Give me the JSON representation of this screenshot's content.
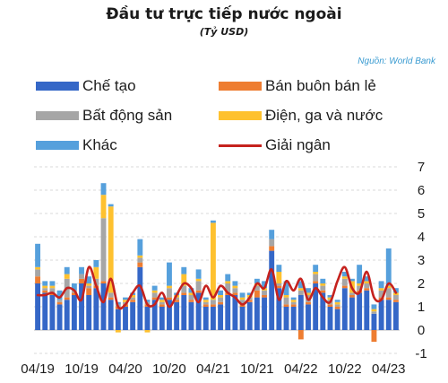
{
  "header": {
    "title": "Đầu tư trực tiếp nước ngoài",
    "subtitle": "(Tỷ USD)",
    "source": "Nguồn: World Bank"
  },
  "colors": {
    "manufacturing": "#3567c7",
    "wholesale": "#ee7d31",
    "real_estate": "#a6a6a6",
    "utilities": "#fec12f",
    "other": "#56a0dc",
    "disbursement": "#c5221e"
  },
  "legend": [
    {
      "key": "manufacturing",
      "label": "Chế tạo"
    },
    {
      "key": "wholesale",
      "label": "Bán buôn bán lẻ"
    },
    {
      "key": "real_estate",
      "label": "Bất động sản"
    },
    {
      "key": "utilities",
      "label": "Điện, ga và nước"
    },
    {
      "key": "other",
      "label": "Khác"
    },
    {
      "key": "disbursement",
      "label": "Giải ngân"
    }
  ],
  "chart_data": {
    "type": "bar",
    "stacked": true,
    "ylim": [
      -1,
      7
    ],
    "yticks": [
      -1,
      0,
      1,
      2,
      3,
      4,
      5,
      6,
      7
    ],
    "grid": true,
    "x_tick_labels": [
      "04/19",
      "10/19",
      "04/20",
      "10/20",
      "04/21",
      "10/21",
      "04/22",
      "10/22",
      "04/23"
    ],
    "x_tick_positions": [
      0,
      6,
      12,
      18,
      24,
      30,
      36,
      42,
      48
    ],
    "months": [
      "04/19",
      "05/19",
      "06/19",
      "07/19",
      "08/19",
      "09/19",
      "10/19",
      "11/19",
      "12/19",
      "01/20",
      "02/20",
      "03/20",
      "04/20",
      "05/20",
      "06/20",
      "07/20",
      "08/20",
      "09/20",
      "10/20",
      "11/20",
      "12/20",
      "01/21",
      "02/21",
      "03/21",
      "04/21",
      "05/21",
      "06/21",
      "07/21",
      "08/21",
      "09/21",
      "10/21",
      "11/21",
      "12/21",
      "01/22",
      "02/22",
      "03/22",
      "04/22",
      "05/22",
      "06/22",
      "07/22",
      "08/22",
      "09/22",
      "10/22",
      "11/22",
      "12/22",
      "01/23",
      "02/23",
      "03/23",
      "04/23",
      "05/23"
    ],
    "series": [
      {
        "key": "manufacturing",
        "name": "Chế tạo",
        "values": [
          2.0,
          1.6,
          1.5,
          1.1,
          1.3,
          1.5,
          2.0,
          1.5,
          1.8,
          2.0,
          1.3,
          0.9,
          1.0,
          1.2,
          2.7,
          1.0,
          1.3,
          1.0,
          1.3,
          1.2,
          1.5,
          1.2,
          1.6,
          1.0,
          1.0,
          1.1,
          1.5,
          1.5,
          1.0,
          1.2,
          1.4,
          1.4,
          3.4,
          1.8,
          1.0,
          1.0,
          1.5,
          1.1,
          2.0,
          1.6,
          1.0,
          0.9,
          1.8,
          1.4,
          1.6,
          1.7,
          0.7,
          1.3,
          1.3,
          1.2
        ]
      },
      {
        "key": "wholesale",
        "name": "Bán buôn bán lẻ",
        "values": [
          0.3,
          0.1,
          0.1,
          0.1,
          0.1,
          0.1,
          0.2,
          0.3,
          0.1,
          0.1,
          0.1,
          0.1,
          0.1,
          0.1,
          0.2,
          0.1,
          0.1,
          0.1,
          0.1,
          0.1,
          0.1,
          0.1,
          0.1,
          0.1,
          0.1,
          0.1,
          0.1,
          0.1,
          0.1,
          0.1,
          0.3,
          0.1,
          0.2,
          0.1,
          0.1,
          0.1,
          -0.4,
          0.1,
          0.1,
          0.1,
          0.1,
          0.1,
          0.1,
          0.1,
          0.1,
          0.1,
          -0.5,
          0.1,
          0.1,
          0.1
        ]
      },
      {
        "key": "real_estate",
        "name": "Bất động sản",
        "values": [
          0.3,
          0.1,
          0.2,
          0.1,
          0.8,
          0.1,
          0.2,
          0.1,
          0.3,
          2.7,
          0.2,
          0.1,
          0.1,
          0.1,
          0.2,
          0.1,
          0.2,
          0.1,
          0.4,
          0.1,
          0.3,
          0.2,
          0.4,
          0.1,
          0.2,
          0.2,
          0.4,
          0.2,
          0.2,
          0.1,
          0.2,
          0.2,
          0.3,
          0.1,
          0.3,
          0.1,
          0.2,
          0.3,
          0.3,
          0.2,
          0.2,
          0.1,
          0.3,
          0.1,
          0.2,
          0.2,
          0.1,
          0.3,
          0.4,
          0.2
        ]
      },
      {
        "key": "utilities",
        "name": "Điện, ga và nước",
        "values": [
          0.1,
          0.1,
          0.1,
          0.0,
          0.2,
          0.0,
          0.0,
          0.1,
          0.5,
          1.0,
          3.7,
          -0.1,
          0.1,
          0.1,
          0.1,
          -0.1,
          0.1,
          0.1,
          0.1,
          0.1,
          0.5,
          0.1,
          0.1,
          0.1,
          3.3,
          0.1,
          0.1,
          0.1,
          0.1,
          0.1,
          0.1,
          0.1,
          0.0,
          0.5,
          0.1,
          0.1,
          0.1,
          0.1,
          0.1,
          0.1,
          0.1,
          0.1,
          0.1,
          0.5,
          0.1,
          0.1,
          0.1,
          0.1,
          0.1,
          0.1
        ]
      },
      {
        "key": "other",
        "name": "Khác",
        "values": [
          1.0,
          0.2,
          0.2,
          0.4,
          0.3,
          0.3,
          0.3,
          0.3,
          0.3,
          0.5,
          0.1,
          0.1,
          0.1,
          0.1,
          0.7,
          0.1,
          0.2,
          0.1,
          1.0,
          0.1,
          0.3,
          0.2,
          0.4,
          0.1,
          0.1,
          0.2,
          0.3,
          0.2,
          0.2,
          0.1,
          0.2,
          0.3,
          0.4,
          0.3,
          0.6,
          0.1,
          0.3,
          0.2,
          0.3,
          0.2,
          0.1,
          0.1,
          0.2,
          0.1,
          0.8,
          0.2,
          0.2,
          0.3,
          1.6,
          0.2
        ]
      },
      {
        "key": "disbursement",
        "name": "Giải ngân",
        "type": "line",
        "values": [
          1.5,
          1.5,
          1.6,
          1.4,
          1.8,
          1.7,
          1.3,
          2.7,
          1.9,
          1.2,
          2.2,
          1.0,
          1.1,
          1.6,
          1.9,
          1.1,
          1.1,
          1.6,
          1.0,
          1.5,
          2.0,
          1.8,
          1.2,
          1.9,
          1.4,
          1.9,
          1.6,
          1.4,
          1.1,
          1.4,
          2.0,
          1.8,
          2.6,
          1.3,
          2.1,
          1.7,
          2.2,
          1.3,
          1.8,
          1.4,
          1.2,
          2.1,
          2.7,
          1.8,
          1.6,
          2.5,
          1.4,
          1.3,
          2.0,
          1.6
        ]
      }
    ]
  }
}
